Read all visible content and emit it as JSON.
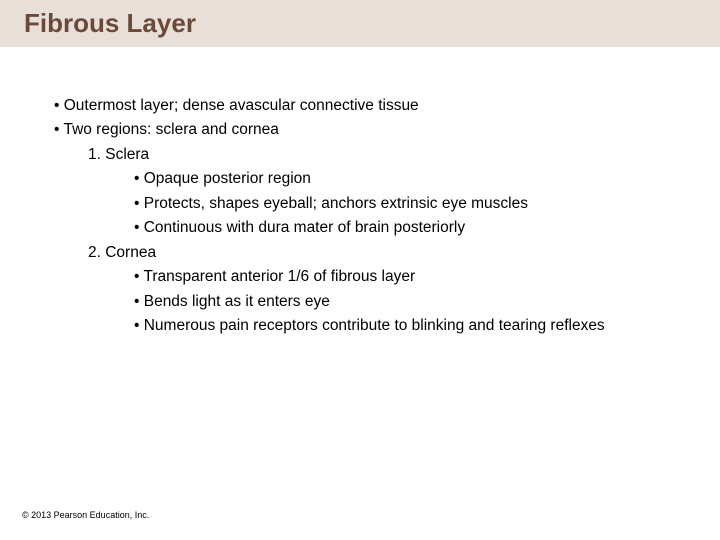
{
  "title": "Fibrous Layer",
  "title_color": "#6b4a3a",
  "title_bg": "#e8e0d8",
  "title_fontsize": 26,
  "body_fontsize": 15.5,
  "text_color": "#000000",
  "background_color": "#ffffff",
  "bullets": {
    "b1": "•  Outermost layer; dense avascular connective tissue",
    "b2": "•  Two regions: sclera and cornea",
    "n1": "1. Sclera",
    "n1a": "•  Opaque posterior region",
    "n1b": "•  Protects, shapes eyeball; anchors extrinsic eye muscles",
    "n1c": "•  Continuous with dura mater of brain posteriorly",
    "n2": "2. Cornea",
    "n2a": "•  Transparent anterior 1/6 of fibrous layer",
    "n2b": "•  Bends light as it enters eye",
    "n2c": "•  Numerous pain receptors contribute to blinking and tearing reflexes"
  },
  "footer": "© 2013 Pearson Education, Inc."
}
